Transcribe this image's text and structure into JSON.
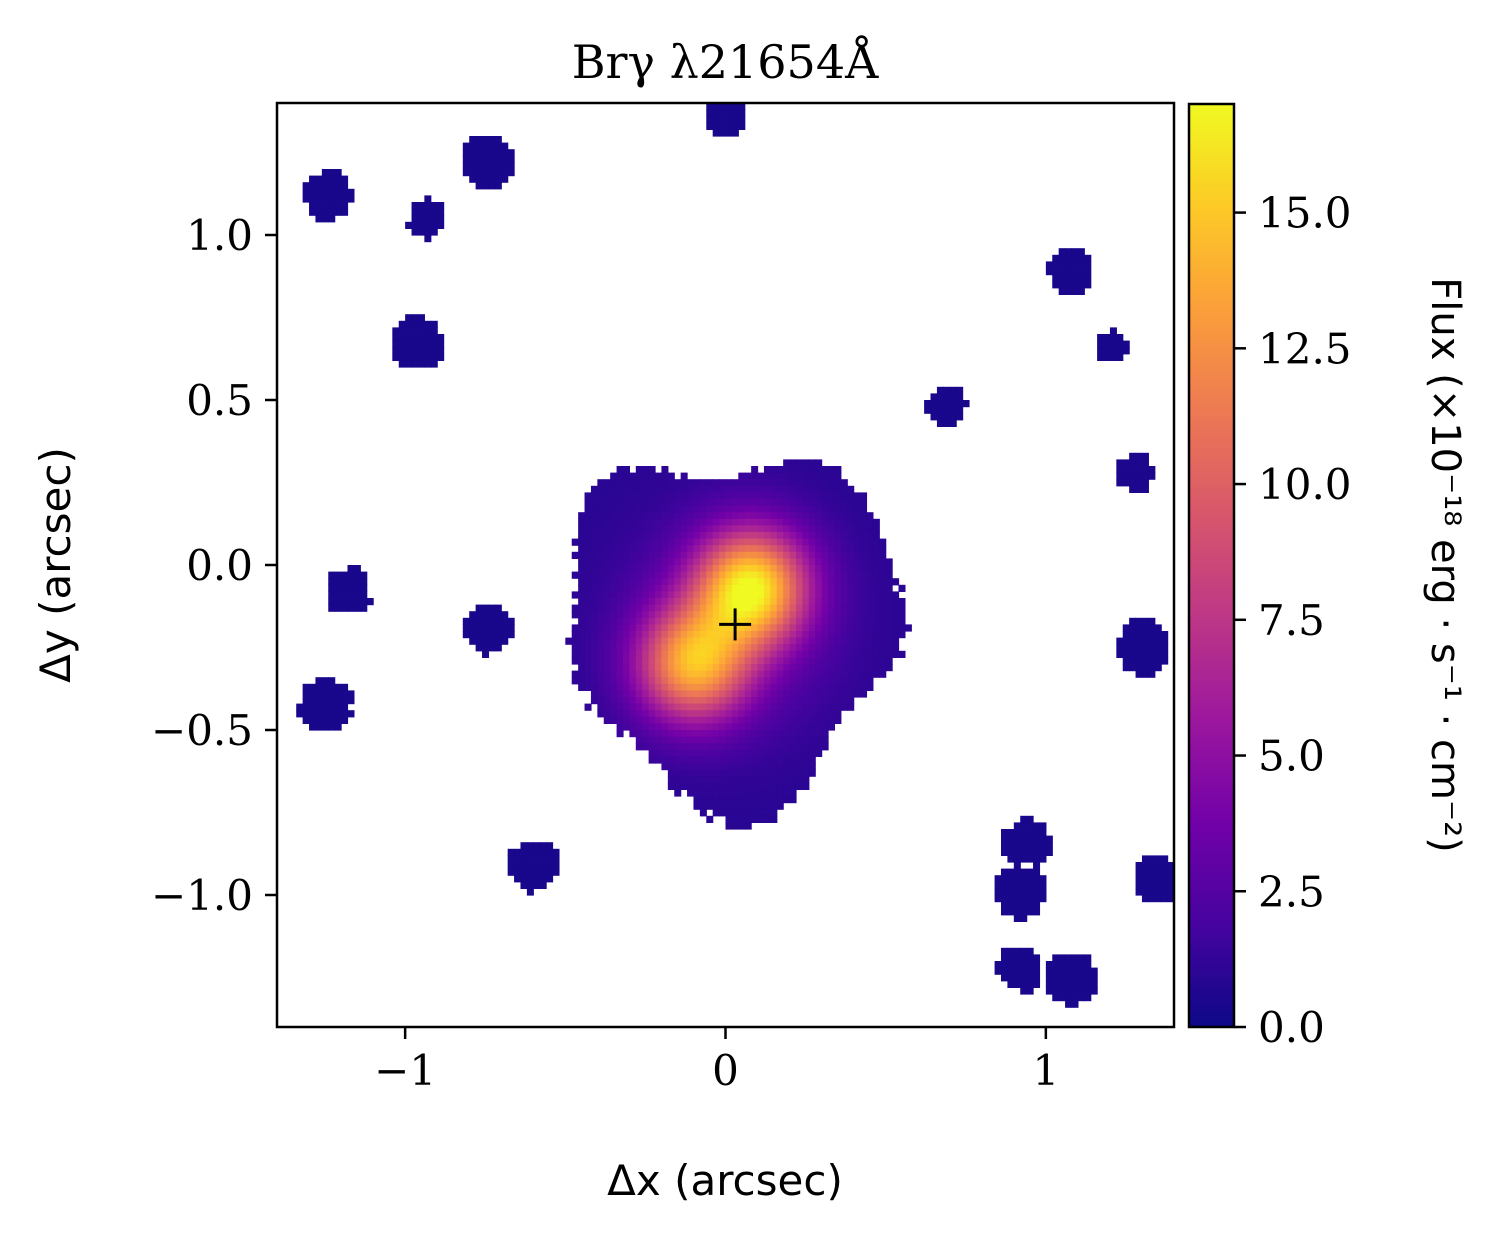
{
  "chart_data": {
    "type": "heatmap",
    "title": "Brγ λ21654Å",
    "xlabel": "Δx (arcsec)",
    "ylabel": "Δy (arcsec)",
    "colorbar_label": "Flux (×10⁻¹⁸ erg · s⁻¹ · cm⁻²)",
    "colormap": "plasma",
    "xlim": [
      -1.4,
      1.4
    ],
    "ylim": [
      -1.4,
      1.4
    ],
    "clim": [
      0.0,
      17.0
    ],
    "x_ticks": [
      -1,
      0,
      1
    ],
    "x_tick_labels": [
      "−1",
      "0",
      "1"
    ],
    "y_ticks": [
      1.0,
      0.5,
      0.0,
      -0.5,
      -1.0
    ],
    "y_tick_labels": [
      "1.0",
      "0.5",
      "0.0",
      "−0.5",
      "−1.0"
    ],
    "colorbar_ticks": [
      0.0,
      2.5,
      5.0,
      7.5,
      10.0,
      12.5,
      15.0
    ],
    "colorbar_tick_labels": [
      "0.0",
      "2.5",
      "5.0",
      "7.5",
      "10.0",
      "12.5",
      "15.0"
    ],
    "marker": {
      "symbol": "+",
      "x": 0.03,
      "y": -0.18
    },
    "emission_peaks": [
      {
        "x": 0.08,
        "y": -0.07,
        "flux": 16.0
      },
      {
        "x": -0.1,
        "y": -0.3,
        "flux": 13.5
      }
    ],
    "background_patches": [
      {
        "x": 0.0,
        "y": 1.36,
        "flux": 0.4
      },
      {
        "x": -1.24,
        "y": 1.12,
        "flux": 0.4
      },
      {
        "x": -0.74,
        "y": 1.22,
        "flux": 0.4
      },
      {
        "x": -0.93,
        "y": 1.05,
        "flux": 0.4
      },
      {
        "x": -0.96,
        "y": 0.67,
        "flux": 0.4
      },
      {
        "x": 1.08,
        "y": 0.89,
        "flux": 0.4
      },
      {
        "x": 0.69,
        "y": 0.48,
        "flux": 0.4
      },
      {
        "x": 1.28,
        "y": 0.28,
        "flux": 0.5
      },
      {
        "x": -1.18,
        "y": -0.08,
        "flux": 0.4
      },
      {
        "x": -0.74,
        "y": -0.19,
        "flux": 0.4
      },
      {
        "x": -1.25,
        "y": -0.42,
        "flux": 0.4
      },
      {
        "x": -0.6,
        "y": -0.91,
        "flux": 0.4
      },
      {
        "x": 0.94,
        "y": -0.84,
        "flux": 0.4
      },
      {
        "x": 0.92,
        "y": -0.99,
        "flux": 0.4
      },
      {
        "x": 0.92,
        "y": -1.22,
        "flux": 0.4
      },
      {
        "x": 1.08,
        "y": -1.25,
        "flux": 0.4
      },
      {
        "x": 1.35,
        "y": -0.95,
        "flux": 0.4
      },
      {
        "x": 1.3,
        "y": -0.25,
        "flux": 0.4
      },
      {
        "x": 1.2,
        "y": 0.66,
        "flux": 0.4
      }
    ]
  }
}
